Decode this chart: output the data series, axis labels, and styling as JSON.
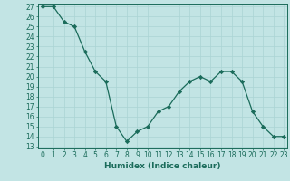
{
  "x": [
    0,
    1,
    2,
    3,
    4,
    5,
    6,
    7,
    8,
    9,
    10,
    11,
    12,
    13,
    14,
    15,
    16,
    17,
    18,
    19,
    20,
    21,
    22,
    23
  ],
  "y": [
    27,
    27,
    25.5,
    25,
    22.5,
    20.5,
    19.5,
    15,
    13.5,
    14.5,
    15,
    16.5,
    17,
    18.5,
    19.5,
    20,
    19.5,
    20.5,
    20.5,
    19.5,
    16.5,
    15,
    14,
    14
  ],
  "line_color": "#1a6b5a",
  "marker": "D",
  "marker_size": 2.2,
  "bg_color": "#c2e4e4",
  "grid_color": "#aad4d4",
  "xlabel": "Humidex (Indice chaleur)",
  "ylim_min": 13,
  "ylim_max": 27,
  "xlim_min": 0,
  "xlim_max": 23,
  "yticks": [
    13,
    14,
    15,
    16,
    17,
    18,
    19,
    20,
    21,
    22,
    23,
    24,
    25,
    26,
    27
  ],
  "xticks": [
    0,
    1,
    2,
    3,
    4,
    5,
    6,
    7,
    8,
    9,
    10,
    11,
    12,
    13,
    14,
    15,
    16,
    17,
    18,
    19,
    20,
    21,
    22,
    23
  ],
  "tick_fontsize": 5.5,
  "xlabel_fontsize": 6.5
}
